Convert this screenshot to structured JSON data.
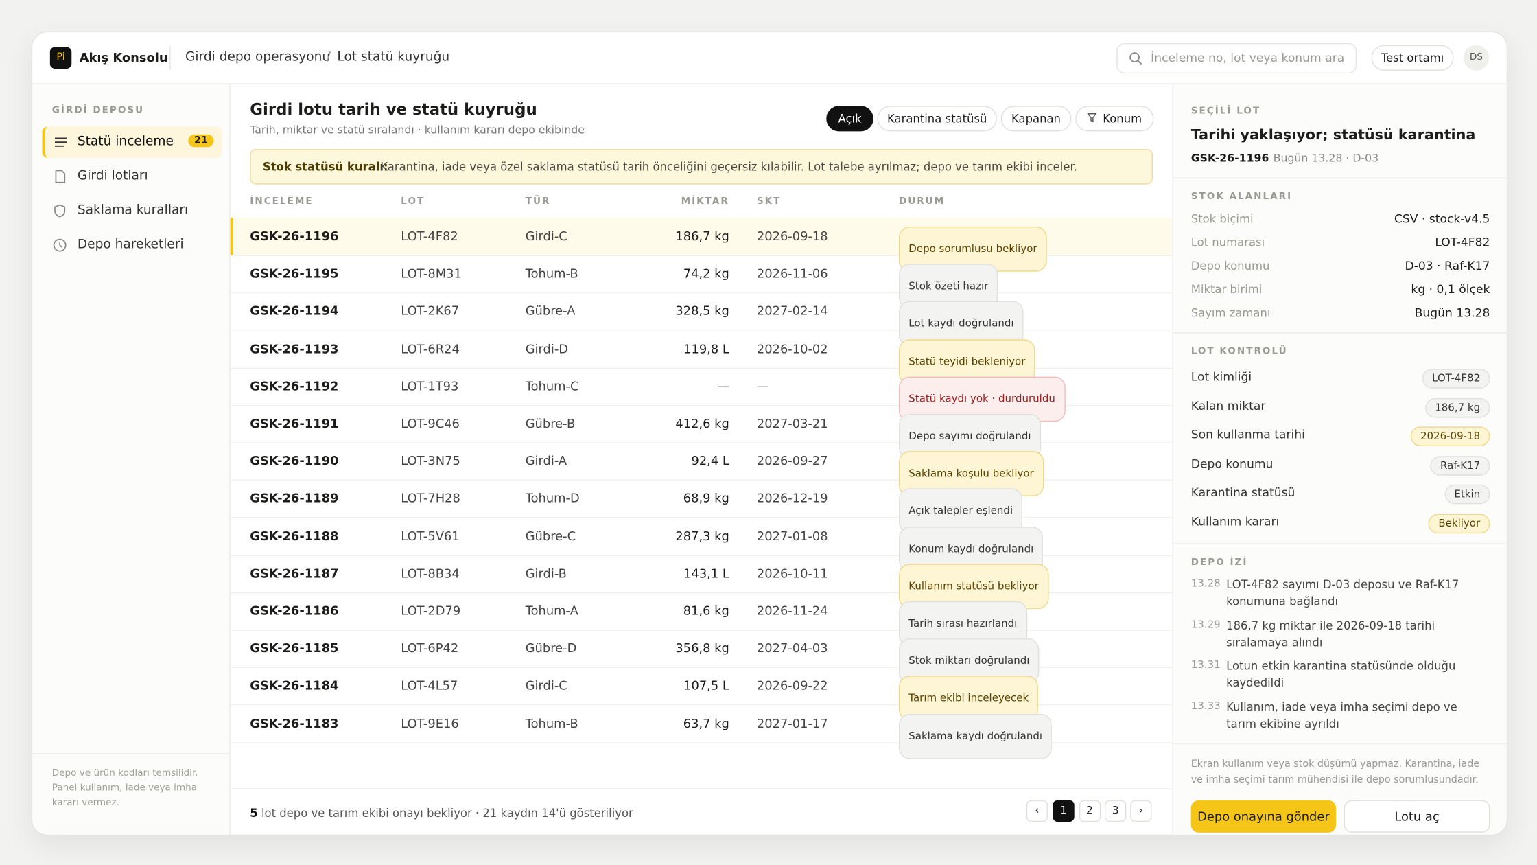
{
  "app": {
    "brand_icon": "Pi",
    "brand": "Akış Konsolu",
    "breadcrumb": [
      "Girdi depo operasyonu",
      "Lot statü kuyruğu"
    ],
    "breadcrumb_separator": "/",
    "search_placeholder": "İnceleme no, lot veya konum ara",
    "env_button": "Test ortamı",
    "avatar": "DS"
  },
  "sidebar": {
    "section": "GİRDİ DEPOSU",
    "nav": [
      {
        "label": "Statü inceleme",
        "badge": "21",
        "active": true
      },
      {
        "label": "Girdi lotları"
      },
      {
        "label": "Saklama kuralları"
      },
      {
        "label": "Depo hareketleri"
      }
    ],
    "note": "Depo ve ürün kodları temsilidir. Panel kullanım, iade veya imha kararı vermez."
  },
  "main": {
    "title": "Girdi lotu tarih ve statü kuyruğu",
    "subtitle": "Tarih, miktar ve statü sıralandı · kullanım kararı depo ekibinde",
    "filters": [
      {
        "label": "Açık",
        "active": true
      },
      {
        "label": "Karantina statüsü"
      },
      {
        "label": "Kapanan"
      },
      {
        "label": "Konum"
      }
    ],
    "notice": {
      "label": "Stok statüsü kuralı:",
      "text": "Karantina, iade veya özel saklama statüsü tarih önceliğini geçersiz kılabilir. Lot talebe ayrılmaz; depo ve tarım ekibi inceler."
    },
    "table": {
      "columns": [
        "İNCELEME",
        "LOT",
        "TÜR",
        "MİKTAR",
        "SKT",
        "DURUM"
      ],
      "rows": [
        [
          "GSK-26-1196",
          "LOT-4F82",
          "Girdi-C",
          "186,7 kg",
          "2026-09-18",
          "Depo sorumlusu bekliyor",
          "warn"
        ],
        [
          "GSK-26-1195",
          "LOT-8M31",
          "Tohum-B",
          "74,2 kg",
          "2026-11-06",
          "Stok özeti hazır",
          "neutral"
        ],
        [
          "GSK-26-1194",
          "LOT-2K67",
          "Gübre-A",
          "328,5 kg",
          "2027-02-14",
          "Lot kaydı doğrulandı",
          "neutral"
        ],
        [
          "GSK-26-1193",
          "LOT-6R24",
          "Girdi-D",
          "119,8 L",
          "2026-10-02",
          "Statü teyidi bekleniyor",
          "warn"
        ],
        [
          "GSK-26-1192",
          "LOT-1T93",
          "Tohum-C",
          "—",
          "—",
          "Statü kaydı yok · durduruldu",
          "danger"
        ],
        [
          "GSK-26-1191",
          "LOT-9C46",
          "Gübre-B",
          "412,6 kg",
          "2027-03-21",
          "Depo sayımı doğrulandı",
          "neutral"
        ],
        [
          "GSK-26-1190",
          "LOT-3N75",
          "Girdi-A",
          "92,4 L",
          "2026-09-27",
          "Saklama koşulu bekliyor",
          "warn"
        ],
        [
          "GSK-26-1189",
          "LOT-7H28",
          "Tohum-D",
          "68,9 kg",
          "2026-12-19",
          "Açık talepler eşlendi",
          "neutral"
        ],
        [
          "GSK-26-1188",
          "LOT-5V61",
          "Gübre-C",
          "287,3 kg",
          "2027-01-08",
          "Konum kaydı doğrulandı",
          "neutral"
        ],
        [
          "GSK-26-1187",
          "LOT-8B34",
          "Girdi-B",
          "143,1 L",
          "2026-10-11",
          "Kullanım statüsü bekliyor",
          "warn"
        ],
        [
          "GSK-26-1186",
          "LOT-2D79",
          "Tohum-A",
          "81,6 kg",
          "2026-11-24",
          "Tarih sırası hazırlandı",
          "neutral"
        ],
        [
          "GSK-26-1185",
          "LOT-6P42",
          "Gübre-D",
          "356,8 kg",
          "2027-04-03",
          "Stok miktarı doğrulandı",
          "neutral"
        ],
        [
          "GSK-26-1184",
          "LOT-4L57",
          "Girdi-C",
          "107,5 L",
          "2026-09-22",
          "Tarım ekibi inceleyecek",
          "warn"
        ],
        [
          "GSK-26-1183",
          "LOT-9E16",
          "Tohum-B",
          "63,7 kg",
          "2027-01-17",
          "Saklama kaydı doğrulandı",
          "neutral"
        ]
      ]
    },
    "footer": {
      "count": "5",
      "text": "lot depo ve tarım ekibi onayı bekliyor · 21 kaydın 14'ü gösteriliyor",
      "prev": "‹",
      "pages": [
        "1",
        "2",
        "3"
      ],
      "next": "›"
    }
  },
  "detail": {
    "section": "SEÇİLİ LOT",
    "title": "Tarihi yaklaşıyor; statüsü karantina",
    "id": "GSK-26-1196",
    "meta": "Bugün 13.28 · D-03",
    "fields_title": "STOK ALANLARI",
    "fields": [
      [
        "Stok biçimi",
        "CSV · stock-v4.5"
      ],
      [
        "Lot numarası",
        "LOT-4F82"
      ],
      [
        "Depo konumu",
        "D-03 · Raf-K17"
      ],
      [
        "Miktar birimi",
        "kg · 0,1 ölçek"
      ],
      [
        "Sayım zamanı",
        "Bugün 13.28"
      ]
    ],
    "checks_title": "LOT KONTROLÜ",
    "checks": [
      [
        "Lot kimliği",
        "LOT-4F82",
        "neutral"
      ],
      [
        "Kalan miktar",
        "186,7 kg",
        "neutral"
      ],
      [
        "Son kullanma tarihi",
        "2026-09-18",
        "warn"
      ],
      [
        "Depo konumu",
        "Raf-K17",
        "neutral"
      ],
      [
        "Karantina statüsü",
        "Etkin",
        "neutral"
      ],
      [
        "Kullanım kararı",
        "Bekliyor",
        "warn"
      ]
    ],
    "log_title": "DEPO İZİ",
    "log": [
      [
        "13.28",
        "LOT-4F82 sayımı D-03 deposu ve Raf-K17 konumuna bağlandı"
      ],
      [
        "13.29",
        "186,7 kg miktar ile 2026-09-18 tarihi sıralamaya alındı"
      ],
      [
        "13.31",
        "Lotun etkin karantina statüsünde olduğu kaydedildi"
      ],
      [
        "13.33",
        "Kullanım, iade veya imha seçimi depo ve tarım ekibine ayrıldı"
      ]
    ],
    "note": "Ekran kullanım veya stok düşümü yapmaz. Karantina, iade ve imha seçimi tarım mühendisi ile depo sorumlusundadır.",
    "primary": "Depo onayına gönder",
    "secondary": "Lotu aç"
  }
}
